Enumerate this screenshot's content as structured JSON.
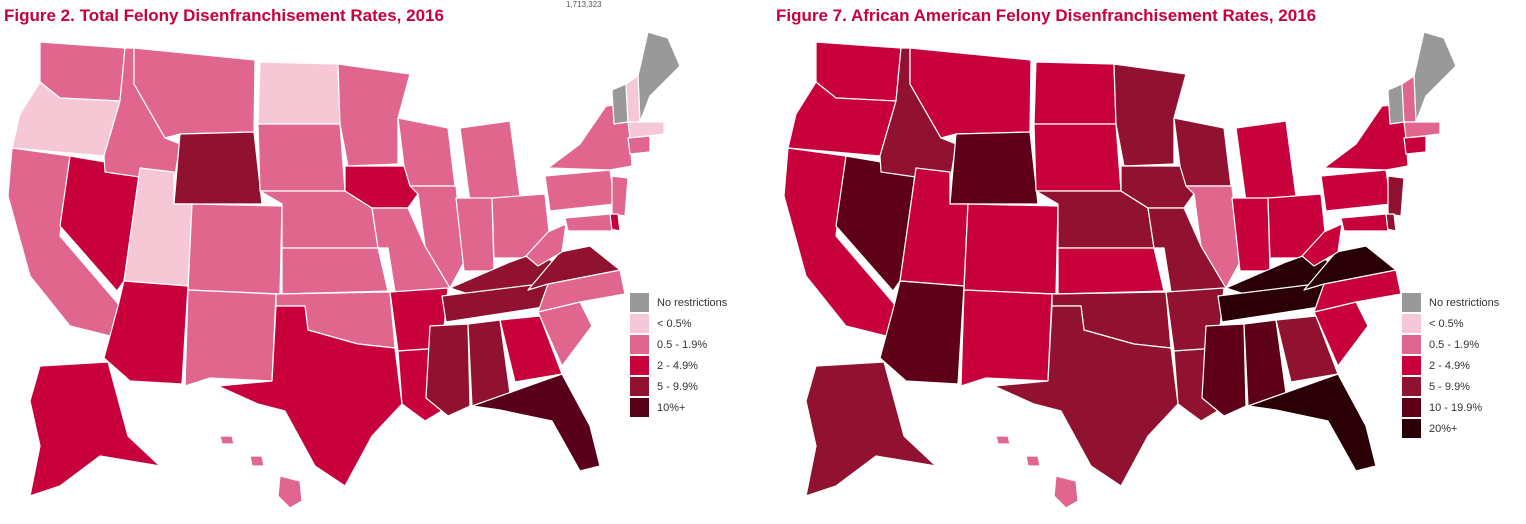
{
  "figures": [
    {
      "title": "Figure 2. Total Felony Disenfranchisement Rates, 2016",
      "corner_tag": "1,713,323",
      "legend": [
        {
          "label": "No restrictions",
          "color": "#999999"
        },
        {
          "label": "< 0.5%",
          "color": "#f6c8d6"
        },
        {
          "label": "0.5 - 1.9%",
          "color": "#e0668d"
        },
        {
          "label": "2 - 4.9%",
          "color": "#c8003c"
        },
        {
          "label": "5 - 9.9%",
          "color": "#911230"
        },
        {
          "label": "10%+",
          "color": "#58001a"
        }
      ],
      "states": {
        "WA": "0.5 - 1.9%",
        "OR": "< 0.5%",
        "CA": "0.5 - 1.9%",
        "NV": "2 - 4.9%",
        "ID": "0.5 - 1.9%",
        "MT": "0.5 - 1.9%",
        "WY": "5 - 9.9%",
        "UT": "< 0.5%",
        "AZ": "2 - 4.9%",
        "CO": "0.5 - 1.9%",
        "NM": "0.5 - 1.9%",
        "ND": "< 0.5%",
        "SD": "0.5 - 1.9%",
        "NE": "0.5 - 1.9%",
        "KS": "0.5 - 1.9%",
        "OK": "0.5 - 1.9%",
        "TX": "2 - 4.9%",
        "MN": "0.5 - 1.9%",
        "IA": "2 - 4.9%",
        "MO": "0.5 - 1.9%",
        "AR": "2 - 4.9%",
        "LA": "2 - 4.9%",
        "WI": "0.5 - 1.9%",
        "IL": "0.5 - 1.9%",
        "MI": "0.5 - 1.9%",
        "IN": "0.5 - 1.9%",
        "OH": "0.5 - 1.9%",
        "KY": "5 - 9.9%",
        "TN": "5 - 9.9%",
        "MS": "5 - 9.9%",
        "AL": "5 - 9.9%",
        "GA": "2 - 4.9%",
        "FL": "10%+",
        "SC": "0.5 - 1.9%",
        "NC": "0.5 - 1.9%",
        "VA": "5 - 9.9%",
        "WV": "0.5 - 1.9%",
        "PA": "0.5 - 1.9%",
        "NY": "0.5 - 1.9%",
        "NJ": "0.5 - 1.9%",
        "DE": "2 - 4.9%",
        "MD": "0.5 - 1.9%",
        "VT": "No restrictions",
        "ME": "No restrictions",
        "NH": "< 0.5%",
        "MA": "< 0.5%",
        "CT": "0.5 - 1.9%",
        "AK": "2 - 4.9%",
        "HI": "0.5 - 1.9%"
      }
    },
    {
      "title": "Figure 7. African American Felony Disenfranchisement Rates, 2016",
      "legend": [
        {
          "label": "No restrictions",
          "color": "#999999"
        },
        {
          "label": "< 0.5%",
          "color": "#f6c8d6"
        },
        {
          "label": "0.5 - 1.9%",
          "color": "#e0668d"
        },
        {
          "label": "2 - 4.9%",
          "color": "#c8003c"
        },
        {
          "label": "5 - 9.9%",
          "color": "#911230"
        },
        {
          "label": "10 - 19.9%",
          "color": "#5e0018"
        },
        {
          "label": "20%+",
          "color": "#2a0006"
        }
      ],
      "states": {
        "WA": "2 - 4.9%",
        "OR": "2 - 4.9%",
        "CA": "2 - 4.9%",
        "NV": "10 - 19.9%",
        "ID": "5 - 9.9%",
        "MT": "2 - 4.9%",
        "WY": "10 - 19.9%",
        "UT": "2 - 4.9%",
        "AZ": "10 - 19.9%",
        "CO": "2 - 4.9%",
        "NM": "2 - 4.9%",
        "ND": "2 - 4.9%",
        "SD": "2 - 4.9%",
        "NE": "5 - 9.9%",
        "KS": "2 - 4.9%",
        "OK": "5 - 9.9%",
        "TX": "5 - 9.9%",
        "MN": "5 - 9.9%",
        "IA": "5 - 9.9%",
        "MO": "5 - 9.9%",
        "AR": "5 - 9.9%",
        "LA": "5 - 9.9%",
        "WI": "5 - 9.9%",
        "IL": "0.5 - 1.9%",
        "MI": "2 - 4.9%",
        "IN": "2 - 4.9%",
        "OH": "2 - 4.9%",
        "KY": "20%+",
        "TN": "20%+",
        "MS": "10 - 19.9%",
        "AL": "10 - 19.9%",
        "GA": "5 - 9.9%",
        "FL": "20%+",
        "SC": "2 - 4.9%",
        "NC": "2 - 4.9%",
        "VA": "20%+",
        "WV": "2 - 4.9%",
        "PA": "2 - 4.9%",
        "NY": "2 - 4.9%",
        "NJ": "5 - 9.9%",
        "DE": "5 - 9.9%",
        "MD": "2 - 4.9%",
        "VT": "No restrictions",
        "ME": "No restrictions",
        "NH": "0.5 - 1.9%",
        "MA": "0.5 - 1.9%",
        "CT": "2 - 4.9%",
        "AK": "5 - 9.9%",
        "HI": "0.5 - 1.9%"
      }
    }
  ]
}
